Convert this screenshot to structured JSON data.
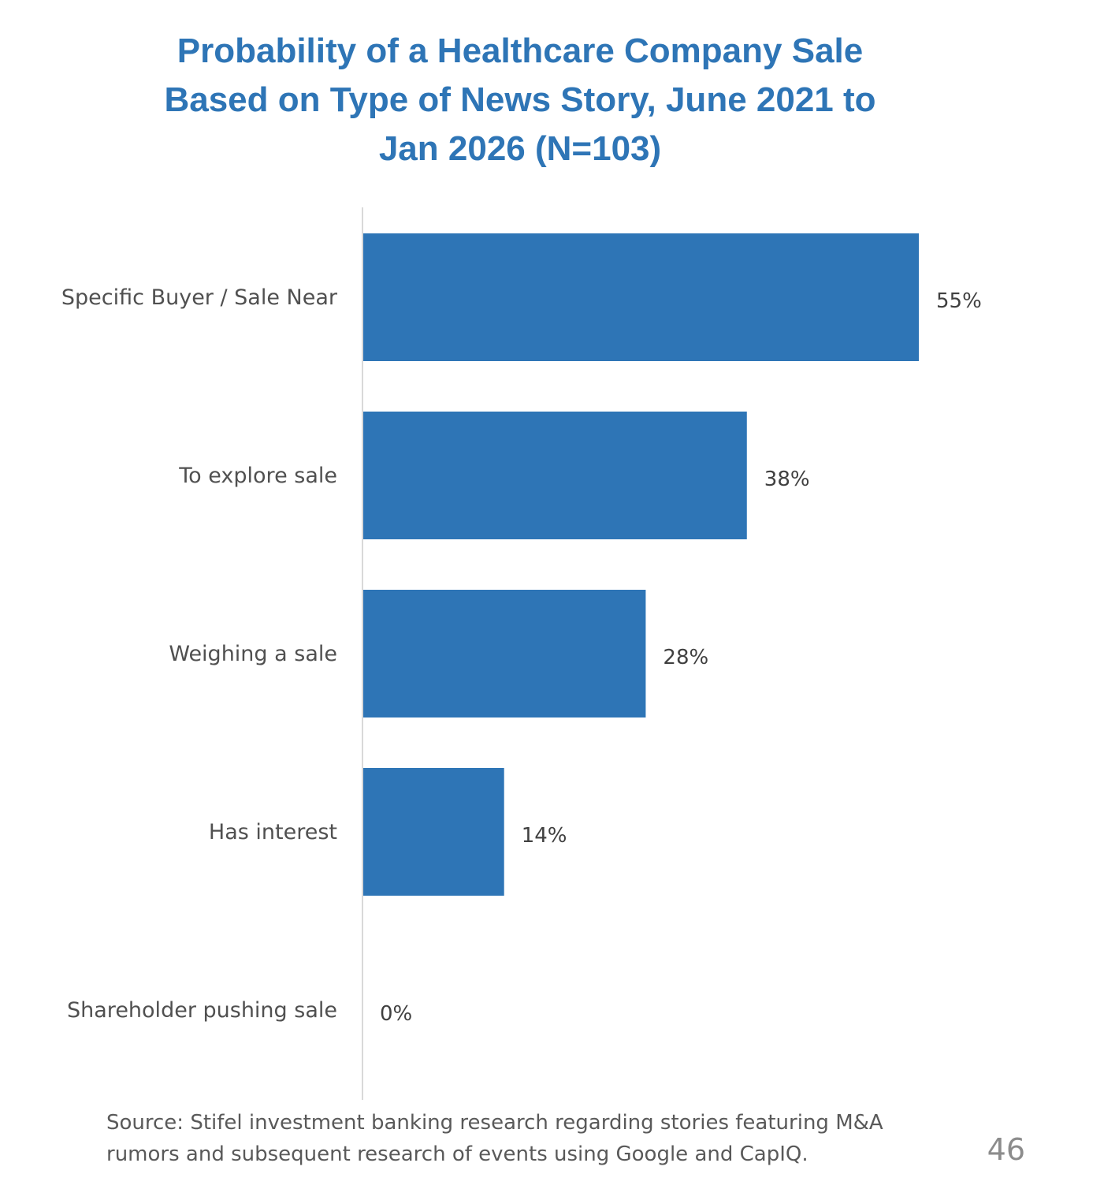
{
  "title_lines": [
    "Probability of a Healthcare Company Sale",
    "Based on Type of News Story, June 2021 to",
    "Jan 2026 (N=103)"
  ],
  "chart_data": {
    "type": "bar",
    "orientation": "horizontal",
    "title": "Probability of a Healthcare Company Sale Based on Type of News Story, June 2021 to Jan 2026 (N=103)",
    "categories": [
      "Specific Buyer / Sale Near",
      "To explore sale",
      "Weighing a sale",
      "Has interest",
      "Shareholder pushing sale"
    ],
    "values": [
      55,
      38,
      28,
      14,
      0
    ],
    "value_labels": [
      "55%",
      "38%",
      "28%",
      "14%",
      "0%"
    ],
    "unit": "%",
    "xlim": [
      0,
      55
    ],
    "grid": false,
    "bar_color": "#2e75b6",
    "axis_color": "#d9d9d9"
  },
  "source_lines": [
    "Source: Stifel investment banking research regarding stories featuring M&A",
    "rumors and subsequent research of events using Google and CapIQ."
  ],
  "page_number": "46",
  "colors": {
    "accent": "#2e75b6",
    "text": "#505050",
    "muted": "#8c8c8c"
  }
}
